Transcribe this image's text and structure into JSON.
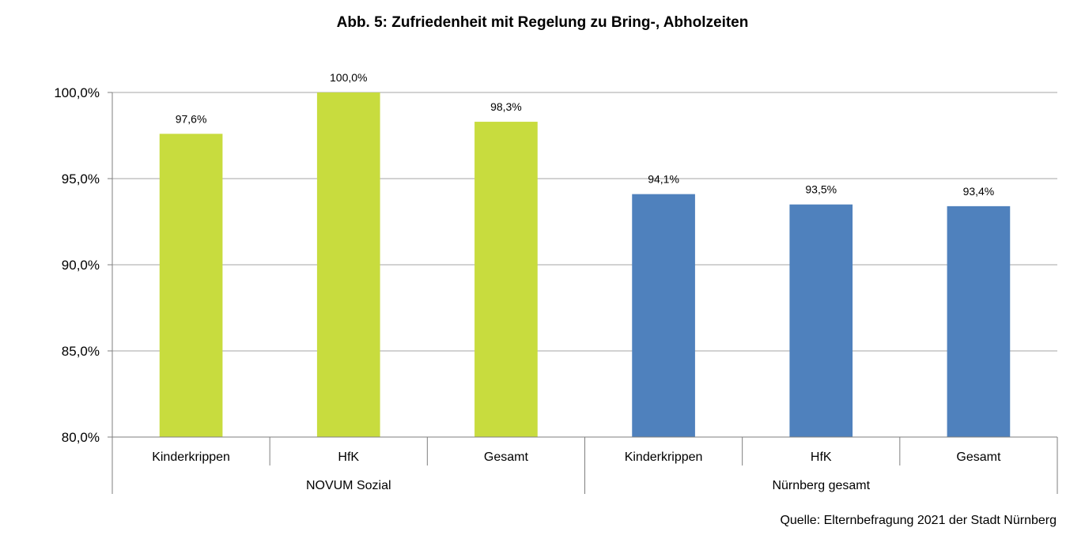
{
  "title": "Abb. 5: Zufriedenheit mit Regelung zu Bring-, Abholzeiten",
  "source": "Quelle: Elternbefragung 2021 der Stadt Nürnberg",
  "colors": {
    "group1": "#c8dc3e",
    "group2": "#4f81bd",
    "grid": "#a6a6a6",
    "axis": "#7f7f7f"
  },
  "chart_data": {
    "type": "bar",
    "title": "Abb. 5: Zufriedenheit mit Regelung zu Bring-, Abholzeiten",
    "groups": [
      {
        "name": "NOVUM Sozial",
        "categories": [
          "Kinderkrippen",
          "HfK",
          "Gesamt"
        ],
        "values": [
          97.6,
          100.0,
          98.3
        ],
        "labels": [
          "97,6%",
          "100,0%",
          "98,3%"
        ],
        "color": "#c8dc3e"
      },
      {
        "name": "Nürnberg gesamt",
        "categories": [
          "Kinderkrippen",
          "HfK",
          "Gesamt"
        ],
        "values": [
          94.1,
          93.5,
          93.4
        ],
        "labels": [
          "94,1%",
          "93,5%",
          "93,4%"
        ],
        "color": "#4f81bd"
      }
    ],
    "ylim": [
      80,
      100
    ],
    "yticks": [
      80,
      85,
      90,
      95,
      100
    ],
    "ytick_labels": [
      "80,0%",
      "85,0%",
      "90,0%",
      "95,0%",
      "100,0%"
    ],
    "grid": true,
    "legend": "none"
  }
}
